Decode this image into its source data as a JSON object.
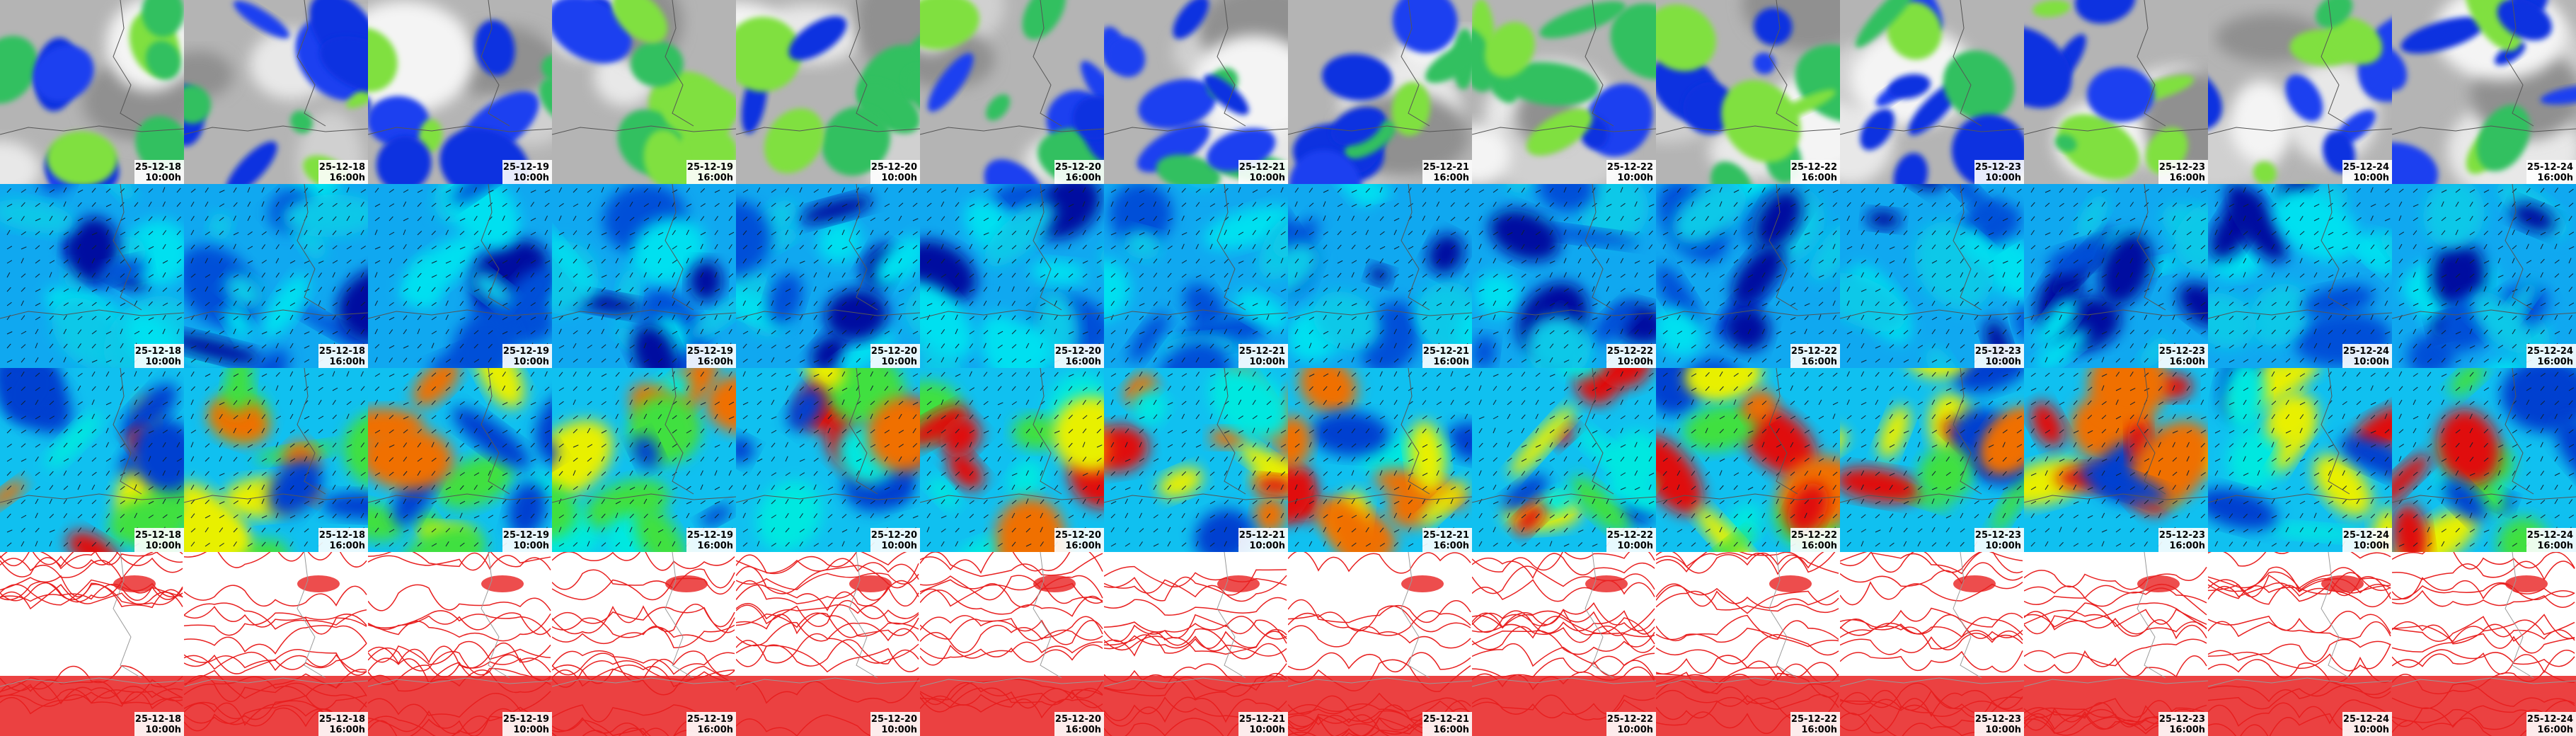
{
  "columns": [
    {
      "date": "25-12-18",
      "time": "10:00h"
    },
    {
      "date": "25-12-18",
      "time": "16:00h"
    },
    {
      "date": "25-12-19",
      "time": "10:00h"
    },
    {
      "date": "25-12-19",
      "time": "16:00h"
    },
    {
      "date": "25-12-20",
      "time": "10:00h"
    },
    {
      "date": "25-12-20",
      "time": "16:00h"
    },
    {
      "date": "25-12-21",
      "time": "10:00h"
    },
    {
      "date": "25-12-21",
      "time": "16:00h"
    },
    {
      "date": "25-12-22",
      "time": "10:00h"
    },
    {
      "date": "25-12-22",
      "time": "16:00h"
    },
    {
      "date": "25-12-23",
      "time": "10:00h"
    },
    {
      "date": "25-12-23",
      "time": "16:00h"
    },
    {
      "date": "25-12-24",
      "time": "10:00h"
    },
    {
      "date": "25-12-24",
      "time": "16:00h"
    }
  ]
}
